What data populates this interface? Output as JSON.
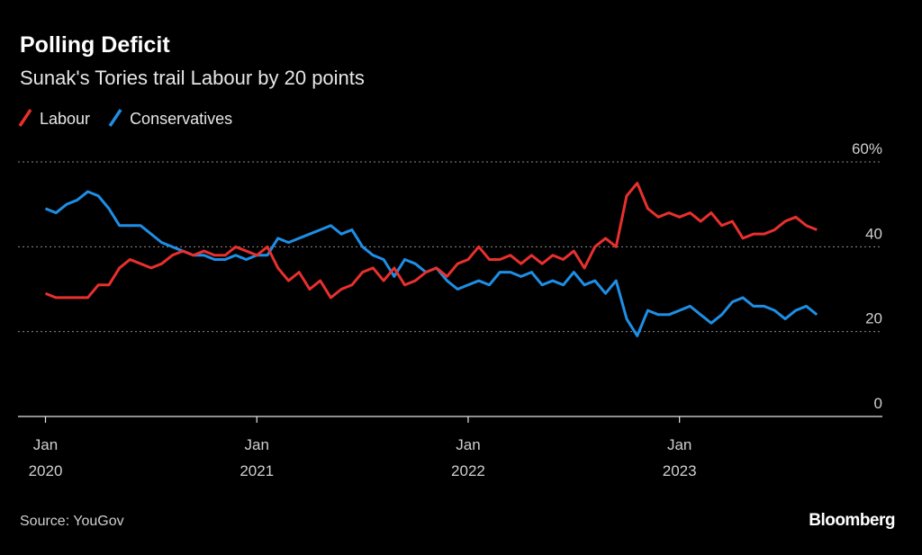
{
  "chart_data": {
    "type": "line",
    "title": "Polling Deficit",
    "subtitle": "Sunak's Tories trail Labour by 20 points",
    "source": "Source: YouGov",
    "branding": "Bloomberg",
    "legend": "top-left",
    "grid": true,
    "x": [
      2020,
      2020.05,
      2020.1,
      2020.15,
      2020.2,
      2020.25,
      2020.3,
      2020.35,
      2020.4,
      2020.45,
      2020.5,
      2020.55,
      2020.6,
      2020.65,
      2020.7,
      2020.75,
      2020.8,
      2020.85,
      2020.9,
      2020.95,
      2021,
      2021.05,
      2021.1,
      2021.15,
      2021.2,
      2021.25,
      2021.3,
      2021.35,
      2021.4,
      2021.45,
      2021.5,
      2021.55,
      2021.6,
      2021.65,
      2021.7,
      2021.75,
      2021.8,
      2021.85,
      2021.9,
      2021.95,
      2022,
      2022.05,
      2022.1,
      2022.15,
      2022.2,
      2022.25,
      2022.3,
      2022.35,
      2022.4,
      2022.45,
      2022.5,
      2022.55,
      2022.6,
      2022.65,
      2022.7,
      2022.75,
      2022.8,
      2022.85,
      2022.9,
      2022.95,
      2023,
      2023.05,
      2023.1,
      2023.15,
      2023.2,
      2023.25,
      2023.3,
      2023.35,
      2023.4,
      2023.45,
      2023.5,
      2023.55,
      2023.6,
      2023.65
    ],
    "xlim": [
      2019.87,
      2023.96
    ],
    "xticks": [
      {
        "value": 2020,
        "label": "Jan 2020"
      },
      {
        "value": 2021,
        "label": "Jan 2021"
      },
      {
        "value": 2022,
        "label": "Jan 2022"
      },
      {
        "value": 2023,
        "label": "Jan 2023"
      }
    ],
    "ylim": [
      0,
      60
    ],
    "yticks": [
      0,
      20,
      40,
      {
        "value": 60,
        "label": "60%"
      }
    ],
    "series": [
      {
        "name": "Labour",
        "color": "#e8302e",
        "values": [
          29,
          28,
          28,
          28,
          28,
          31,
          31,
          35,
          37,
          36,
          35,
          36,
          38,
          39,
          38,
          39,
          38,
          38,
          40,
          39,
          38,
          40,
          35,
          32,
          34,
          30,
          32,
          28,
          30,
          31,
          34,
          35,
          32,
          35,
          31,
          32,
          34,
          35,
          33,
          36,
          37,
          40,
          37,
          37,
          38,
          36,
          38,
          36,
          38,
          37,
          39,
          35,
          40,
          42,
          40,
          52,
          55,
          49,
          47,
          48,
          47,
          48,
          46,
          48,
          45,
          46,
          42,
          43,
          43,
          44,
          46,
          47,
          45,
          44
        ]
      },
      {
        "name": "Conservatives",
        "color": "#1e8fe6",
        "values": [
          49,
          48,
          50,
          51,
          53,
          52,
          49,
          45,
          45,
          45,
          43,
          41,
          40,
          39,
          38,
          38,
          37,
          37,
          38,
          37,
          38,
          38,
          42,
          41,
          42,
          43,
          44,
          45,
          43,
          44,
          40,
          38,
          37,
          33,
          37,
          36,
          34,
          35,
          32,
          30,
          31,
          32,
          31,
          34,
          34,
          33,
          34,
          31,
          32,
          31,
          34,
          31,
          32,
          29,
          32,
          23,
          19,
          25,
          24,
          24,
          25,
          26,
          24,
          22,
          24,
          27,
          28,
          26,
          26,
          25,
          23,
          25,
          26,
          24
        ]
      }
    ]
  }
}
